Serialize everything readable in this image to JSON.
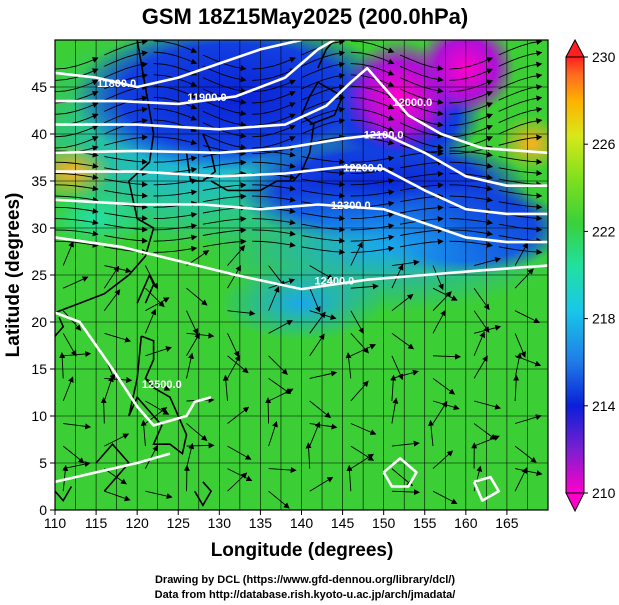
{
  "chart_data": {
    "type": "heatmap",
    "title": "GSM 18Z15May2025 (200.0hPa)",
    "xlabel": "Longitude (degrees)",
    "ylabel": "Latitude  (degrees)",
    "xlim": [
      110,
      170
    ],
    "ylim": [
      0,
      50
    ],
    "x_ticks": [
      110,
      115,
      120,
      125,
      130,
      135,
      140,
      145,
      150,
      155,
      160,
      165
    ],
    "y_ticks": [
      0,
      5,
      10,
      15,
      20,
      25,
      30,
      35,
      40,
      45
    ],
    "colorbar": {
      "range": [
        210,
        230
      ],
      "ticks": [
        210,
        214,
        218,
        222,
        226,
        230
      ],
      "colors": [
        "#ff00cc",
        "#7a1fd0",
        "#0a1fd8",
        "#1f7be8",
        "#19c8e8",
        "#21e0a0",
        "#3ad13a",
        "#7ee01e",
        "#d8e81a",
        "#ffb000",
        "#ff6a20",
        "#ff2020"
      ]
    },
    "contours": [
      {
        "label": "11800.0",
        "lon": 117.5,
        "lat": 45.0
      },
      {
        "label": "11900.0",
        "lon": 128.5,
        "lat": 43.5
      },
      {
        "label": "12000.0",
        "lon": 153.5,
        "lat": 43.0
      },
      {
        "label": "12100.0",
        "lon": 150.0,
        "lat": 39.5
      },
      {
        "label": "12200.0",
        "lon": 147.5,
        "lat": 36.0
      },
      {
        "label": "12300.0",
        "lon": 146.0,
        "lat": 32.0
      },
      {
        "label": "12400.0",
        "lon": 144.0,
        "lat": 24.0
      },
      {
        "label": "12500.0",
        "lon": 123.0,
        "lat": 13.0
      }
    ],
    "credits": [
      "Drawing by DCL (https://www.gfd-dennou.org/library/dcl/)",
      "Data from http://database.rish.kyoto-u.ac.jp/arch/jmadata/"
    ]
  }
}
